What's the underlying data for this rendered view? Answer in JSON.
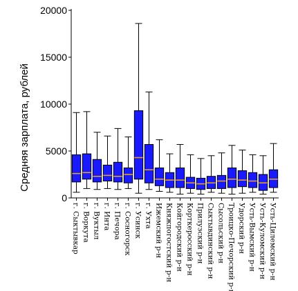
{
  "chart_data": {
    "type": "boxplot",
    "title": "",
    "xlabel": "",
    "ylabel": "Средняя зарплата, рублей",
    "ylim": [
      0,
      20000
    ],
    "yticks": [
      0,
      5000,
      10000,
      15000,
      20000
    ],
    "grid": false,
    "box_color": "#1a1aff",
    "median_color": "#e8a020",
    "categories": [
      "г. Сыктывкар",
      "г. Воркута",
      "г. Вуктыл",
      "г. Инта",
      "г. Печора",
      "г. Сосногорск",
      "г. Усинск",
      "г. Ухта",
      "Ижемский р-н",
      "Княжпогостский р-н",
      "Койгородский р-н",
      "Корткеросский р-н",
      "Прилузский р-н",
      "Сыктывдинский р-н",
      "Сысольский р-н",
      "Троицко-Печорский р-н",
      "Удорский р-н",
      "Усть-Вымский р-н",
      "Усть-Куломский р-н",
      "Усть-Цилемский р-н"
    ],
    "boxes": [
      {
        "min": 600,
        "q1": 1700,
        "median": 2600,
        "q3": 4600,
        "max": 9100
      },
      {
        "min": 1000,
        "q1": 2000,
        "median": 2700,
        "q3": 4700,
        "max": 9200
      },
      {
        "min": 900,
        "q1": 1700,
        "median": 2300,
        "q3": 4100,
        "max": 7000
      },
      {
        "min": 1000,
        "q1": 1800,
        "median": 2400,
        "q3": 3500,
        "max": 6600
      },
      {
        "min": 900,
        "q1": 1700,
        "median": 2300,
        "q3": 3800,
        "max": 7400
      },
      {
        "min": 1000,
        "q1": 1600,
        "median": 2500,
        "q3": 3200,
        "max": 6500
      },
      {
        "min": 500,
        "q1": 2000,
        "median": 4300,
        "q3": 9300,
        "max": 18600
      },
      {
        "min": 900,
        "q1": 1600,
        "median": 3000,
        "q3": 5700,
        "max": 11300
      },
      {
        "min": 700,
        "q1": 1300,
        "median": 2000,
        "q3": 3200,
        "max": 6200
      },
      {
        "min": 600,
        "q1": 1100,
        "median": 1900,
        "q3": 2700,
        "max": 4700
      },
      {
        "min": 400,
        "q1": 1100,
        "median": 1900,
        "q3": 3200,
        "max": 5700
      },
      {
        "min": 500,
        "q1": 1000,
        "median": 1600,
        "q3": 2200,
        "max": 4600
      },
      {
        "min": 400,
        "q1": 900,
        "median": 1500,
        "q3": 2100,
        "max": 4200
      },
      {
        "min": 600,
        "q1": 1000,
        "median": 1600,
        "q3": 2300,
        "max": 4500
      },
      {
        "min": 500,
        "q1": 1000,
        "median": 1800,
        "q3": 2400,
        "max": 4800
      },
      {
        "min": 400,
        "q1": 1100,
        "median": 2000,
        "q3": 3200,
        "max": 5600
      },
      {
        "min": 500,
        "q1": 1200,
        "median": 1900,
        "q3": 2900,
        "max": 5100
      },
      {
        "min": 600,
        "q1": 1100,
        "median": 1800,
        "q3": 2700,
        "max": 4600
      },
      {
        "min": 400,
        "q1": 800,
        "median": 1600,
        "q3": 2500,
        "max": 4500
      },
      {
        "min": 600,
        "q1": 1100,
        "median": 2000,
        "q3": 3000,
        "max": 5800
      }
    ]
  }
}
